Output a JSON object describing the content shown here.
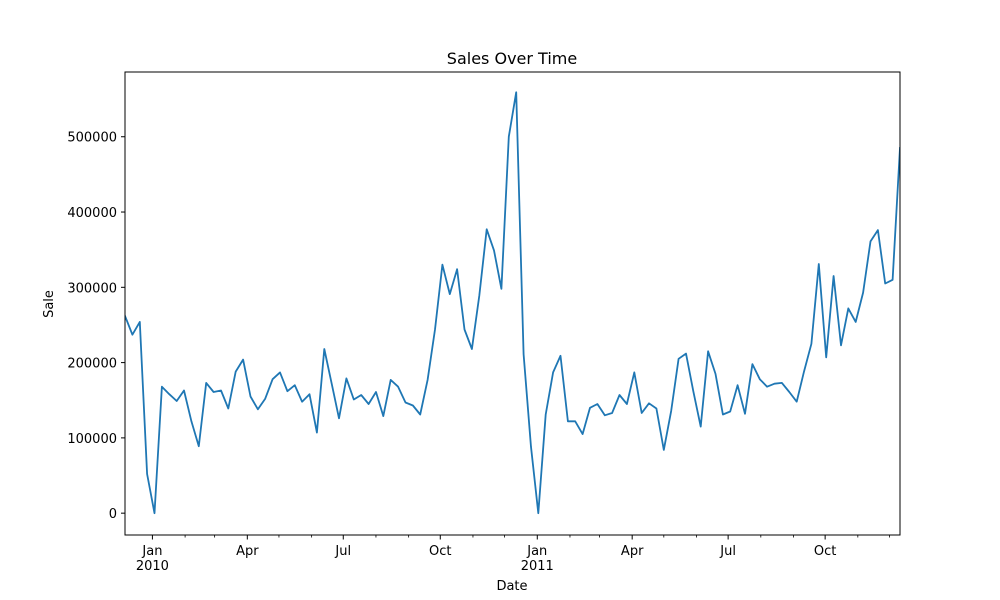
{
  "chart_data": {
    "type": "line",
    "title": "Sales Over Time",
    "xlabel": "Date",
    "ylabel": "Sale",
    "x_range": [
      "2009-12-06",
      "2011-12-11"
    ],
    "ylim": [
      -29000,
      586000
    ],
    "yticks": [
      0,
      100000,
      200000,
      300000,
      400000,
      500000
    ],
    "ytick_labels": [
      "0",
      "100000",
      "200000",
      "300000",
      "400000",
      "500000"
    ],
    "xticks": [
      {
        "date": "2010-01-01",
        "label": "Jan",
        "sublabel": "2010"
      },
      {
        "date": "2010-04-01",
        "label": "Apr",
        "sublabel": ""
      },
      {
        "date": "2010-07-01",
        "label": "Jul",
        "sublabel": ""
      },
      {
        "date": "2010-10-01",
        "label": "Oct",
        "sublabel": ""
      },
      {
        "date": "2011-01-01",
        "label": "Jan",
        "sublabel": "2011"
      },
      {
        "date": "2011-04-01",
        "label": "Apr",
        "sublabel": ""
      },
      {
        "date": "2011-07-01",
        "label": "Jul",
        "sublabel": ""
      },
      {
        "date": "2011-10-01",
        "label": "Oct",
        "sublabel": ""
      }
    ],
    "minor_xticks": [
      "2010-02-01",
      "2010-03-01",
      "2010-05-01",
      "2010-06-01",
      "2010-08-01",
      "2010-09-01",
      "2010-11-01",
      "2010-12-01",
      "2011-02-01",
      "2011-03-01",
      "2011-05-01",
      "2011-06-01",
      "2011-08-01",
      "2011-09-01",
      "2011-11-01",
      "2011-12-01"
    ],
    "grid": false,
    "line_color": "#1f77b4",
    "series": [
      {
        "x": [
          "2009-12-06",
          "2009-12-13",
          "2009-12-20",
          "2009-12-27",
          "2010-01-03",
          "2010-01-10",
          "2010-01-17",
          "2010-01-24",
          "2010-01-31",
          "2010-02-07",
          "2010-02-14",
          "2010-02-21",
          "2010-02-28",
          "2010-03-07",
          "2010-03-14",
          "2010-03-21",
          "2010-03-28",
          "2010-04-04",
          "2010-04-11",
          "2010-04-18",
          "2010-04-25",
          "2010-05-02",
          "2010-05-09",
          "2010-05-16",
          "2010-05-23",
          "2010-05-30",
          "2010-06-06",
          "2010-06-13",
          "2010-06-20",
          "2010-06-27",
          "2010-07-04",
          "2010-07-11",
          "2010-07-18",
          "2010-07-25",
          "2010-08-01",
          "2010-08-08",
          "2010-08-15",
          "2010-08-22",
          "2010-08-29",
          "2010-09-05",
          "2010-09-12",
          "2010-09-19",
          "2010-09-26",
          "2010-10-03",
          "2010-10-10",
          "2010-10-17",
          "2010-10-24",
          "2010-10-31",
          "2010-11-07",
          "2010-11-14",
          "2010-11-21",
          "2010-11-28",
          "2010-12-05",
          "2010-12-12",
          "2010-12-19",
          "2010-12-26",
          "2011-01-02",
          "2011-01-09",
          "2011-01-16",
          "2011-01-23",
          "2011-01-30",
          "2011-02-06",
          "2011-02-13",
          "2011-02-20",
          "2011-02-27",
          "2011-03-06",
          "2011-03-13",
          "2011-03-20",
          "2011-03-27",
          "2011-04-03",
          "2011-04-10",
          "2011-04-17",
          "2011-04-24",
          "2011-05-01",
          "2011-05-08",
          "2011-05-15",
          "2011-05-22",
          "2011-05-29",
          "2011-06-05",
          "2011-06-12",
          "2011-06-19",
          "2011-06-26",
          "2011-07-03",
          "2011-07-10",
          "2011-07-17",
          "2011-07-24",
          "2011-07-31",
          "2011-08-07",
          "2011-08-14",
          "2011-08-21",
          "2011-08-28",
          "2011-09-04",
          "2011-09-11",
          "2011-09-18",
          "2011-09-25",
          "2011-10-02",
          "2011-10-09",
          "2011-10-16",
          "2011-10-23",
          "2011-10-30",
          "2011-11-06",
          "2011-11-13",
          "2011-11-20",
          "2011-11-27",
          "2011-12-04",
          "2011-12-11"
        ],
        "values": [
          262000,
          237000,
          254000,
          52000,
          0,
          168000,
          158000,
          149000,
          163000,
          122000,
          89000,
          173000,
          161000,
          163000,
          139000,
          188000,
          204000,
          155000,
          138000,
          152000,
          178000,
          187000,
          162000,
          170000,
          148000,
          158000,
          107000,
          218000,
          172000,
          126000,
          179000,
          151000,
          157000,
          145000,
          161000,
          129000,
          177000,
          168000,
          147000,
          143000,
          131000,
          177000,
          244000,
          330000,
          291000,
          324000,
          244000,
          218000,
          289000,
          377000,
          349000,
          298000,
          500000,
          559000,
          211000,
          88000,
          0,
          131000,
          187000,
          209000,
          122000,
          122000,
          105000,
          140000,
          145000,
          130000,
          133000,
          157000,
          145000,
          187000,
          133000,
          146000,
          139000,
          84000,
          136000,
          205000,
          212000,
          162000,
          115000,
          215000,
          185000,
          131000,
          135000,
          170000,
          132000,
          198000,
          178000,
          168000,
          172000,
          173000,
          161000,
          148000,
          188000,
          225000,
          331000,
          207000,
          315000,
          223000,
          272000,
          254000,
          293000,
          361000,
          376000,
          305000,
          310000,
          485000
        ]
      }
    ]
  }
}
